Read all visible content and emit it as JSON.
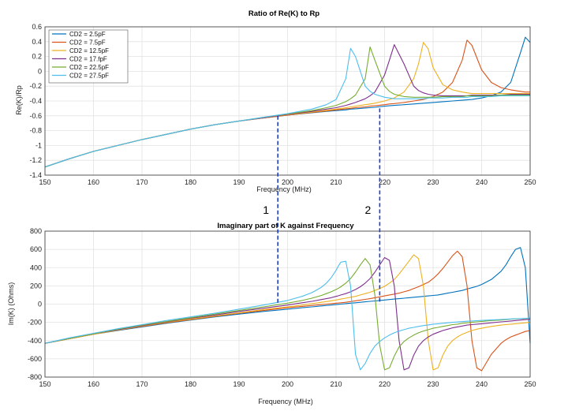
{
  "chart_data": [
    {
      "type": "line",
      "title": "Ratio of Re(K) to Rp",
      "xlabel": "Frequency (MHz)",
      "ylabel": "Re(K)/Rp",
      "xlim": [
        150,
        250
      ],
      "ylim": [
        -1.4,
        0.6
      ],
      "xticks": [
        150,
        160,
        170,
        180,
        190,
        200,
        210,
        220,
        230,
        240,
        250
      ],
      "yticks": [
        0.6,
        0.4,
        0.2,
        0,
        -0.2,
        -0.4,
        -0.6,
        -0.8,
        -1,
        -1.2,
        -1.4
      ],
      "grid": true,
      "legend_position": "top-left",
      "x": [
        150,
        155,
        160,
        165,
        170,
        175,
        180,
        185,
        190,
        195,
        200,
        205,
        208,
        210,
        212,
        213,
        214,
        216,
        217,
        218,
        220,
        221,
        222,
        224,
        226,
        227,
        228,
        229,
        230,
        232,
        234,
        236,
        237,
        238,
        240,
        242,
        244,
        246,
        248,
        249,
        250
      ],
      "series": [
        {
          "name": "CD2 = 2.5pF",
          "color": "#0072BD",
          "values": [
            -1.29,
            -1.18,
            -1.08,
            -1.0,
            -0.92,
            -0.85,
            -0.78,
            -0.72,
            -0.67,
            -0.63,
            -0.59,
            -0.56,
            -0.54,
            -0.53,
            -0.52,
            -0.51,
            -0.505,
            -0.495,
            -0.49,
            -0.485,
            -0.47,
            -0.465,
            -0.46,
            -0.45,
            -0.44,
            -0.435,
            -0.43,
            -0.425,
            -0.42,
            -0.41,
            -0.4,
            -0.39,
            -0.385,
            -0.38,
            -0.36,
            -0.33,
            -0.28,
            -0.15,
            0.25,
            0.46,
            0.39
          ]
        },
        {
          "name": "CD2 = 7.5pF",
          "color": "#D95319",
          "values": [
            -1.29,
            -1.18,
            -1.08,
            -1.0,
            -0.92,
            -0.85,
            -0.78,
            -0.72,
            -0.67,
            -0.63,
            -0.59,
            -0.555,
            -0.535,
            -0.52,
            -0.505,
            -0.5,
            -0.49,
            -0.48,
            -0.47,
            -0.465,
            -0.45,
            -0.44,
            -0.435,
            -0.42,
            -0.4,
            -0.39,
            -0.38,
            -0.36,
            -0.34,
            -0.28,
            -0.15,
            0.15,
            0.42,
            0.35,
            0.02,
            -0.15,
            -0.22,
            -0.25,
            -0.27,
            -0.28,
            -0.28
          ]
        },
        {
          "name": "CD2 = 12.5pF",
          "color": "#EDB120",
          "values": [
            -1.29,
            -1.18,
            -1.08,
            -1.0,
            -0.92,
            -0.85,
            -0.78,
            -0.72,
            -0.67,
            -0.625,
            -0.585,
            -0.55,
            -0.525,
            -0.51,
            -0.49,
            -0.48,
            -0.47,
            -0.45,
            -0.44,
            -0.43,
            -0.4,
            -0.38,
            -0.36,
            -0.28,
            -0.1,
            0.1,
            0.39,
            0.3,
            0.05,
            -0.18,
            -0.25,
            -0.28,
            -0.29,
            -0.3,
            -0.3,
            -0.3,
            -0.3,
            -0.3,
            -0.3,
            -0.3,
            -0.3
          ]
        },
        {
          "name": "CD2 = 17.fpF",
          "color": "#7E2F8E",
          "values": [
            -1.29,
            -1.18,
            -1.08,
            -1.0,
            -0.92,
            -0.85,
            -0.78,
            -0.72,
            -0.67,
            -0.625,
            -0.58,
            -0.54,
            -0.51,
            -0.49,
            -0.46,
            -0.44,
            -0.42,
            -0.37,
            -0.33,
            -0.28,
            -0.05,
            0.15,
            0.36,
            0.1,
            -0.2,
            -0.26,
            -0.29,
            -0.31,
            -0.32,
            -0.33,
            -0.33,
            -0.33,
            -0.33,
            -0.32,
            -0.32,
            -0.32,
            -0.32,
            -0.31,
            -0.31,
            -0.31,
            -0.31
          ]
        },
        {
          "name": "CD2 = 22.5pF",
          "color": "#77AC30",
          "values": [
            -1.29,
            -1.18,
            -1.08,
            -1.0,
            -0.92,
            -0.85,
            -0.78,
            -0.72,
            -0.67,
            -0.62,
            -0.575,
            -0.53,
            -0.49,
            -0.46,
            -0.41,
            -0.37,
            -0.32,
            -0.1,
            0.33,
            0.15,
            -0.2,
            -0.27,
            -0.31,
            -0.34,
            -0.35,
            -0.35,
            -0.35,
            -0.35,
            -0.35,
            -0.34,
            -0.34,
            -0.34,
            -0.33,
            -0.33,
            -0.33,
            -0.33,
            -0.32,
            -0.32,
            -0.32,
            -0.32,
            -0.32
          ]
        },
        {
          "name": "CD2 = 27.5pF",
          "color": "#4DBEEE",
          "values": [
            -1.29,
            -1.18,
            -1.08,
            -1.0,
            -0.92,
            -0.85,
            -0.78,
            -0.72,
            -0.67,
            -0.62,
            -0.57,
            -0.51,
            -0.45,
            -0.38,
            -0.1,
            0.31,
            0.2,
            -0.2,
            -0.27,
            -0.31,
            -0.35,
            -0.36,
            -0.37,
            -0.37,
            -0.37,
            -0.37,
            -0.37,
            -0.36,
            -0.36,
            -0.36,
            -0.35,
            -0.35,
            -0.35,
            -0.34,
            -0.34,
            -0.34,
            -0.33,
            -0.33,
            -0.33,
            -0.33,
            -0.33
          ]
        }
      ]
    },
    {
      "type": "line",
      "title": "Imaginary part of K against Frequency",
      "xlabel": "Frequency (MHz)",
      "ylabel": "Im(K) (Ohms)",
      "xlim": [
        150,
        250
      ],
      "ylim": [
        -800,
        800
      ],
      "xticks": [
        150,
        160,
        170,
        180,
        190,
        200,
        210,
        220,
        230,
        240,
        250
      ],
      "yticks": [
        800,
        600,
        400,
        200,
        0,
        -200,
        -400,
        -600,
        -800
      ],
      "grid": true,
      "x": [
        150,
        155,
        160,
        165,
        170,
        175,
        180,
        185,
        190,
        195,
        200,
        203,
        205,
        207,
        208,
        209,
        210,
        210.5,
        211,
        212,
        213,
        214,
        215,
        216,
        217,
        218,
        219,
        220,
        221,
        222,
        223,
        224,
        225,
        226,
        227,
        228,
        229,
        230,
        231,
        232,
        233,
        234,
        235,
        236,
        237,
        238,
        239,
        240,
        242,
        244,
        245,
        246,
        247,
        248,
        249,
        250
      ],
      "series": [
        {
          "name": "CD2 = 2.5pF",
          "color": "#0072BD",
          "values": [
            -430,
            -380,
            -330,
            -290,
            -250,
            -210,
            -175,
            -140,
            -110,
            -80,
            -55,
            -40,
            -30,
            -20,
            -15,
            -10,
            -5,
            -3,
            0,
            5,
            10,
            15,
            20,
            25,
            30,
            35,
            40,
            45,
            50,
            55,
            60,
            65,
            70,
            75,
            80,
            85,
            90,
            95,
            100,
            110,
            120,
            130,
            140,
            150,
            165,
            180,
            195,
            215,
            270,
            360,
            430,
            520,
            600,
            620,
            400,
            -430
          ]
        },
        {
          "name": "CD2 = 7.5pF",
          "color": "#D95319",
          "values": [
            -430,
            -380,
            -330,
            -285,
            -245,
            -205,
            -170,
            -135,
            -100,
            -70,
            -40,
            -25,
            -15,
            -5,
            0,
            5,
            10,
            12,
            15,
            20,
            28,
            36,
            44,
            52,
            60,
            70,
            80,
            90,
            100,
            110,
            120,
            135,
            150,
            170,
            190,
            215,
            240,
            280,
            330,
            390,
            460,
            530,
            580,
            520,
            200,
            -400,
            -700,
            -730,
            -550,
            -430,
            -390,
            -360,
            -340,
            -320,
            -300,
            -290
          ]
        },
        {
          "name": "CD2 = 12.5pF",
          "color": "#EDB120",
          "values": [
            -430,
            -380,
            -330,
            -285,
            -240,
            -200,
            -165,
            -130,
            -95,
            -60,
            -30,
            -10,
            5,
            20,
            28,
            36,
            45,
            50,
            55,
            65,
            75,
            85,
            100,
            115,
            130,
            150,
            170,
            195,
            230,
            270,
            330,
            400,
            470,
            540,
            500,
            200,
            -400,
            -720,
            -700,
            -560,
            -460,
            -400,
            -360,
            -330,
            -310,
            -290,
            -275,
            -265,
            -245,
            -230,
            -225,
            -220,
            -215,
            -210,
            -205,
            -200
          ]
        },
        {
          "name": "CD2 = 17.fpF",
          "color": "#7E2F8E",
          "values": [
            -430,
            -375,
            -325,
            -280,
            -235,
            -195,
            -155,
            -120,
            -80,
            -45,
            -10,
            15,
            30,
            50,
            60,
            70,
            85,
            92,
            100,
            115,
            135,
            160,
            190,
            230,
            280,
            350,
            430,
            510,
            480,
            200,
            -400,
            -720,
            -700,
            -560,
            -460,
            -400,
            -360,
            -330,
            -310,
            -290,
            -275,
            -260,
            -250,
            -240,
            -230,
            -225,
            -220,
            -215,
            -205,
            -195,
            -190,
            -185,
            -180,
            -175,
            -170,
            -165
          ]
        },
        {
          "name": "CD2 = 22.5pF",
          "color": "#77AC30",
          "values": [
            -430,
            -375,
            -325,
            -275,
            -230,
            -190,
            -150,
            -110,
            -70,
            -30,
            10,
            40,
            65,
            95,
            115,
            135,
            160,
            175,
            190,
            230,
            280,
            350,
            430,
            500,
            430,
            100,
            -450,
            -720,
            -700,
            -570,
            -470,
            -410,
            -370,
            -340,
            -315,
            -295,
            -280,
            -265,
            -255,
            -245,
            -235,
            -225,
            -220,
            -210,
            -205,
            -200,
            -195,
            -190,
            -180,
            -175,
            -170,
            -165,
            -162,
            -160,
            -157,
            -155
          ]
        },
        {
          "name": "CD2 = 27.5pF",
          "color": "#4DBEEE",
          "values": [
            -430,
            -370,
            -320,
            -270,
            -225,
            -180,
            -140,
            -100,
            -55,
            -10,
            40,
            85,
            125,
            185,
            230,
            290,
            370,
            420,
            460,
            470,
            200,
            -550,
            -720,
            -650,
            -540,
            -460,
            -410,
            -370,
            -340,
            -315,
            -295,
            -280,
            -265,
            -255,
            -245,
            -235,
            -228,
            -220,
            -215,
            -210,
            -205,
            -200,
            -196,
            -192,
            -188,
            -185,
            -182,
            -179,
            -174,
            -169,
            -166,
            -163,
            -160,
            -158,
            -156,
            -154
          ]
        }
      ]
    }
  ],
  "markers": [
    {
      "label": "1",
      "freq": 198
    },
    {
      "label": "2",
      "freq": 219
    }
  ]
}
